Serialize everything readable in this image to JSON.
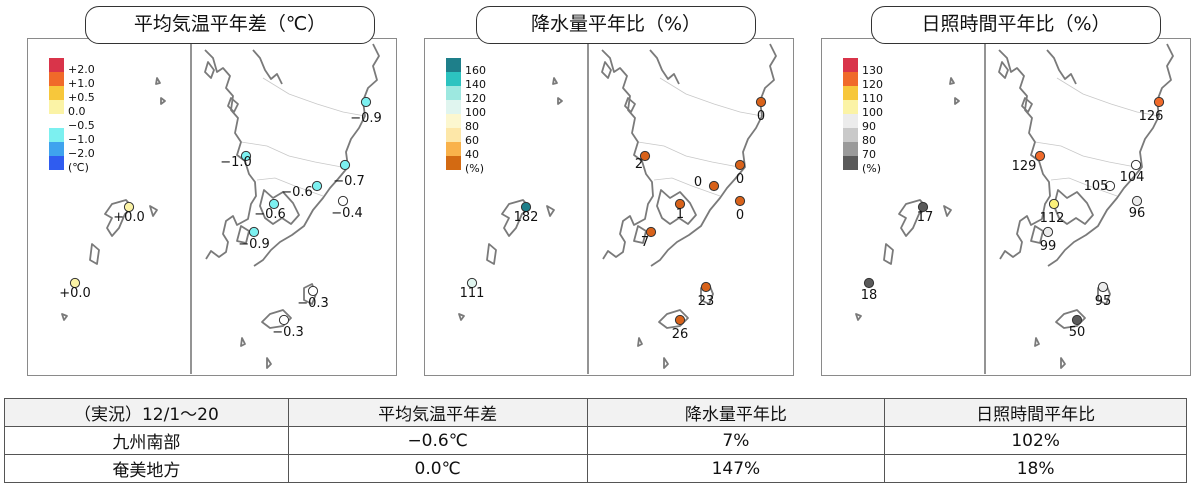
{
  "panels": [
    {
      "title": "平均気温平年差（℃）",
      "legend": [
        {
          "label": "+2.0",
          "color": "#d9344a"
        },
        {
          "label": "+1.0",
          "color": "#f06a2a"
        },
        {
          "label": "+0.5",
          "color": "#f7c73b"
        },
        {
          "label": "0.0",
          "color": "#fbf3a6"
        },
        {
          "label": "−0.5",
          "color": "#ffffff"
        },
        {
          "label": "−1.0",
          "color": "#7cf0f0"
        },
        {
          "label": "−2.0",
          "color": "#3fa3ee"
        },
        {
          "label": "(℃)",
          "color": "#2f5cf0"
        }
      ],
      "stations": [
        {
          "value": "−0.9",
          "color": "#7cf0f0"
        },
        {
          "value": "−0.7",
          "color": "#7cf0f0"
        },
        {
          "value": "−1.0",
          "color": "#7cf0f0"
        },
        {
          "value": "−0.6",
          "color": "#7cf0f0"
        },
        {
          "value": "−0.6",
          "color": "#7cf0f0"
        },
        {
          "value": "−0.4",
          "color": "#ffffff"
        },
        {
          "value": "−0.9",
          "color": "#7cf0f0"
        },
        {
          "value": "+0.0",
          "color": "#fbf3a6"
        },
        {
          "value": "+0.0",
          "color": "#fbf3a6"
        },
        {
          "value": "−0.3",
          "color": "#ffffff"
        },
        {
          "value": "−0.3",
          "color": "#ffffff"
        }
      ]
    },
    {
      "title": "降水量平年比（%）",
      "legend": [
        {
          "label": "160",
          "color": "#1e7f8a"
        },
        {
          "label": "140",
          "color": "#2cc3c0"
        },
        {
          "label": "120",
          "color": "#9de8e0"
        },
        {
          "label": "100",
          "color": "#e0f5ef"
        },
        {
          "label": "80",
          "color": "#fcf7cf"
        },
        {
          "label": "60",
          "color": "#fde7a8"
        },
        {
          "label": "40",
          "color": "#f9b24b"
        },
        {
          "label": "(%)",
          "color": "#d36a12"
        }
      ],
      "stations": [
        {
          "value": "0",
          "color": "#d8621a"
        },
        {
          "value": "2",
          "color": "#d8621a"
        },
        {
          "value": "0",
          "color": "#d8621a"
        },
        {
          "value": "0",
          "color": "#d8621a"
        },
        {
          "value": "0",
          "color": "#d8621a"
        },
        {
          "value": "1",
          "color": "#d8621a"
        },
        {
          "value": "7",
          "color": "#d8621a"
        },
        {
          "value": "182",
          "color": "#1e7f8a"
        },
        {
          "value": "111",
          "color": "#e0f5ef"
        },
        {
          "value": "23",
          "color": "#d8621a"
        },
        {
          "value": "26",
          "color": "#d8621a"
        }
      ]
    },
    {
      "title": "日照時間平年比（%）",
      "legend": [
        {
          "label": "130",
          "color": "#d9344a"
        },
        {
          "label": "120",
          "color": "#f06a2a"
        },
        {
          "label": "110",
          "color": "#f7c73b"
        },
        {
          "label": "100",
          "color": "#fbf3a6"
        },
        {
          "label": "90",
          "color": "#ececec"
        },
        {
          "label": "80",
          "color": "#c9c9c9"
        },
        {
          "label": "70",
          "color": "#9a9a9a"
        },
        {
          "label": "(%)",
          "color": "#5a5a5a"
        }
      ],
      "stations": [
        {
          "value": "126",
          "color": "#f06a2a"
        },
        {
          "value": "129",
          "color": "#f06a2a"
        },
        {
          "value": "105",
          "color": "#ffffff"
        },
        {
          "value": "104",
          "color": "#ffffff"
        },
        {
          "value": "112",
          "color": "#fbf07a"
        },
        {
          "value": "96",
          "color": "#ececec"
        },
        {
          "value": "99",
          "color": "#ececec"
        },
        {
          "value": "17",
          "color": "#5a5a5a"
        },
        {
          "value": "18",
          "color": "#5a5a5a"
        },
        {
          "value": "95",
          "color": "#ececec"
        },
        {
          "value": "50",
          "color": "#5a5a5a"
        }
      ]
    }
  ],
  "summary": {
    "header": [
      "（実況）12/1～20",
      "平均気温平年差",
      "降水量平年比",
      "日照時間平年比"
    ],
    "rows": [
      [
        "九州南部",
        "−0.6℃",
        "7%",
        "102%"
      ],
      [
        "奄美地方",
        "0.0℃",
        "147%",
        "18%"
      ]
    ]
  }
}
